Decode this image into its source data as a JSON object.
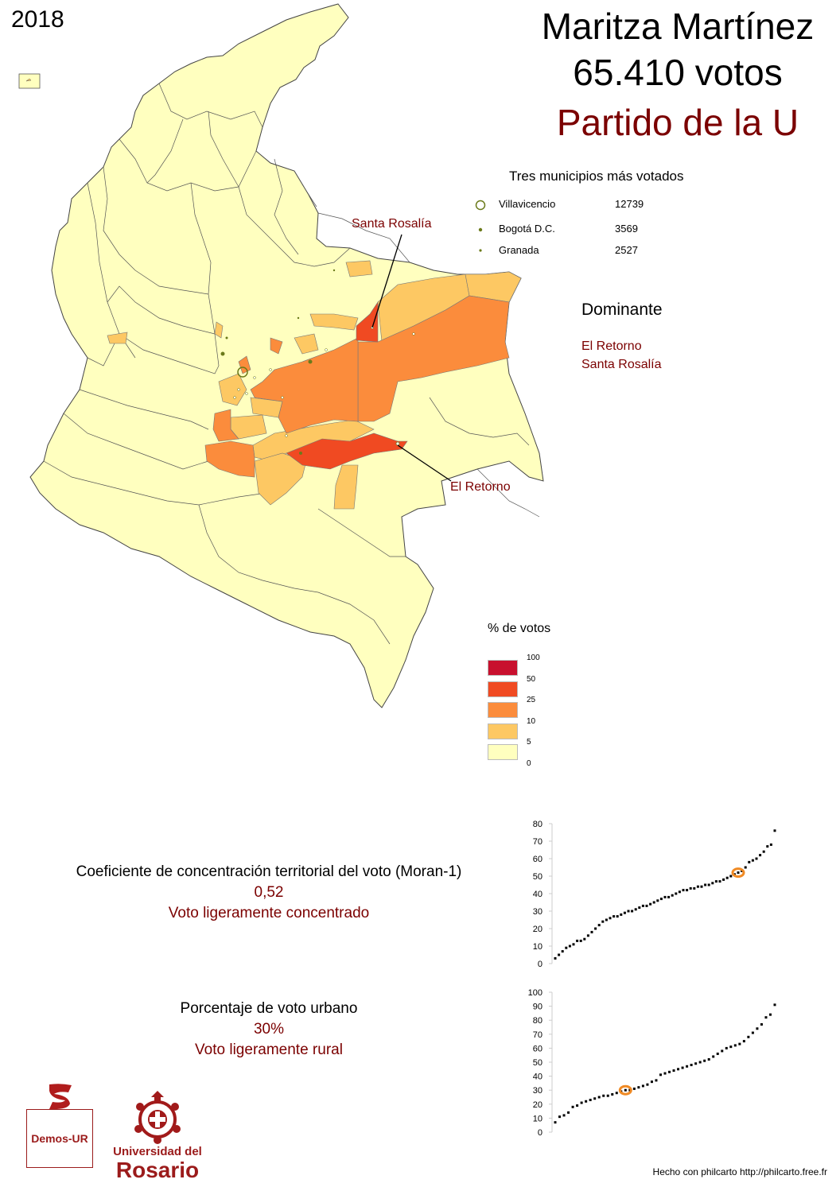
{
  "year": "2018",
  "candidate": {
    "name": "Maritza Martínez",
    "votes": "65.410 votos",
    "party": "Partido de la U"
  },
  "top3": {
    "title": "Tres municipios más votados",
    "items": [
      {
        "name": "Villavicencio",
        "value": "12739"
      },
      {
        "name": "Bogotá D.C.",
        "value": "3569"
      },
      {
        "name": "Granada",
        "value": "2527"
      }
    ]
  },
  "dominant": {
    "title": "Dominante",
    "items": [
      "El Retorno",
      "Santa Rosalía"
    ]
  },
  "callouts": {
    "santa_rosalia": "Santa Rosalía",
    "el_retorno": "El Retorno"
  },
  "legend": {
    "title": "% de votos",
    "breaks": [
      "100",
      "50",
      "25",
      "10",
      "5",
      "0"
    ],
    "colors": [
      "#c8102e",
      "#f04a22",
      "#fb8c3c",
      "#fdc863",
      "#ffffbf"
    ]
  },
  "moran": {
    "title": "Coeficiente de concentración territorial del voto (Moran-1)",
    "value": "0,52",
    "label": "Voto ligeramente concentrado",
    "chart_ticks": [
      "80",
      "70",
      "60",
      "50",
      "40",
      "30",
      "20",
      "10",
      "0"
    ]
  },
  "urban": {
    "title": "Porcentaje de voto urbano",
    "value": "30%",
    "label": "Voto ligeramente rural",
    "chart_ticks": [
      "100",
      "90",
      "80",
      "70",
      "60",
      "50",
      "40",
      "30",
      "20",
      "10",
      "0"
    ]
  },
  "chart_data": [
    {
      "type": "scatter",
      "title": "",
      "ylim": [
        0,
        80
      ],
      "highlight": 52,
      "values": [
        3,
        5,
        7,
        9,
        10,
        11,
        13,
        13,
        14,
        16,
        18,
        20,
        22,
        24,
        25,
        26,
        27,
        27,
        28,
        29,
        30,
        30,
        31,
        32,
        33,
        33,
        34,
        35,
        36,
        37,
        38,
        38,
        39,
        40,
        41,
        42,
        42,
        43,
        43,
        44,
        44,
        45,
        45,
        46,
        47,
        47,
        48,
        49,
        50,
        51,
        52,
        53,
        55,
        58,
        59,
        60,
        62,
        64,
        67,
        68,
        76
      ]
    },
    {
      "type": "scatter",
      "title": "",
      "ylim": [
        0,
        100
      ],
      "highlight": 30,
      "values": [
        7,
        11,
        12,
        14,
        18,
        19,
        21,
        22,
        23,
        24,
        25,
        26,
        26,
        27,
        28,
        29,
        30,
        30,
        31,
        32,
        33,
        34,
        36,
        37,
        41,
        42,
        43,
        44,
        45,
        46,
        47,
        48,
        49,
        50,
        51,
        52,
        54,
        56,
        58,
        60,
        61,
        62,
        63,
        65,
        68,
        71,
        74,
        77,
        82,
        84,
        91
      ]
    }
  ],
  "footer": "Hecho con philcarto http://philcarto.free.fr",
  "logos": {
    "demos": "Demos-UR",
    "ur_line1": "Universidad del",
    "ur_line2": "Rosario"
  }
}
